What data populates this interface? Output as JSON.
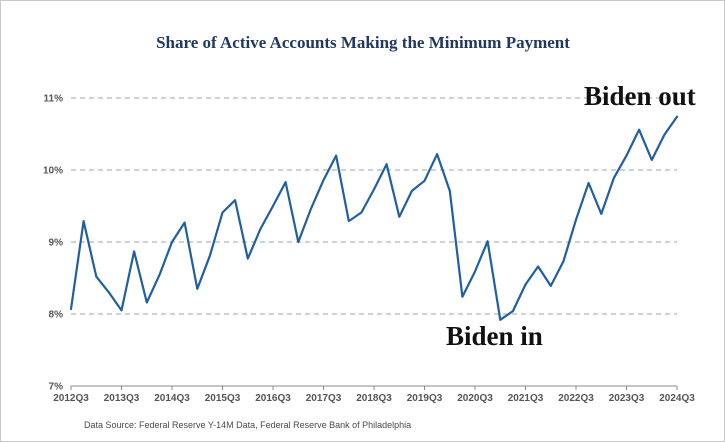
{
  "chart_data": {
    "type": "line",
    "title": "Share of Active Accounts Making the Minimum Payment",
    "xlabel": "",
    "ylabel": "",
    "ylim": [
      7,
      11
    ],
    "y_ticks": [
      "7%",
      "8%",
      "9%",
      "10%",
      "11%"
    ],
    "y_tick_values": [
      7,
      8,
      9,
      10,
      11
    ],
    "grid": "horizontal dashed",
    "x_tick_labels": [
      "2012Q3",
      "2013Q3",
      "2014Q3",
      "2015Q3",
      "2016Q3",
      "2017Q3",
      "2018Q3",
      "2019Q3",
      "2020Q3",
      "2021Q3",
      "2022Q3",
      "2023Q3",
      "2024Q3"
    ],
    "x": [
      "2012Q3",
      "2012Q4",
      "2013Q1",
      "2013Q2",
      "2013Q3",
      "2013Q4",
      "2014Q1",
      "2014Q2",
      "2014Q3",
      "2014Q4",
      "2015Q1",
      "2015Q2",
      "2015Q3",
      "2015Q4",
      "2016Q1",
      "2016Q2",
      "2016Q3",
      "2016Q4",
      "2017Q1",
      "2017Q2",
      "2017Q3",
      "2017Q4",
      "2018Q1",
      "2018Q2",
      "2018Q3",
      "2018Q4",
      "2019Q1",
      "2019Q2",
      "2019Q3",
      "2019Q4",
      "2020Q1",
      "2020Q2",
      "2020Q3",
      "2020Q4",
      "2021Q1",
      "2021Q2",
      "2021Q3",
      "2021Q4",
      "2022Q1",
      "2022Q2",
      "2022Q3",
      "2022Q4",
      "2023Q1",
      "2023Q2",
      "2023Q3",
      "2023Q4",
      "2024Q1",
      "2024Q2",
      "2024Q3"
    ],
    "series": [
      {
        "color": "#1f5fa3",
        "values": [
          8.07,
          9.29,
          8.52,
          8.3,
          8.05,
          8.87,
          8.16,
          8.54,
          9.0,
          9.27,
          8.35,
          8.81,
          9.41,
          9.58,
          8.77,
          9.18,
          9.5,
          9.83,
          9.0,
          9.46,
          9.86,
          10.2,
          9.29,
          9.41,
          9.73,
          10.08,
          9.35,
          9.71,
          9.85,
          10.22,
          9.71,
          8.24,
          8.59,
          9.01,
          7.92,
          8.04,
          8.41,
          8.66,
          8.39,
          8.73,
          9.31,
          9.82,
          9.39,
          9.89,
          10.2,
          10.56,
          10.14,
          10.49,
          10.74
        ]
      }
    ],
    "annotations": [
      {
        "text": "Biden out",
        "at": "2024Q3"
      },
      {
        "text": "Biden in",
        "at": "2021Q1"
      }
    ],
    "source": "Data Source: Federal Reserve Y-14M Data, Federal Reserve Bank of Philadelphia"
  }
}
